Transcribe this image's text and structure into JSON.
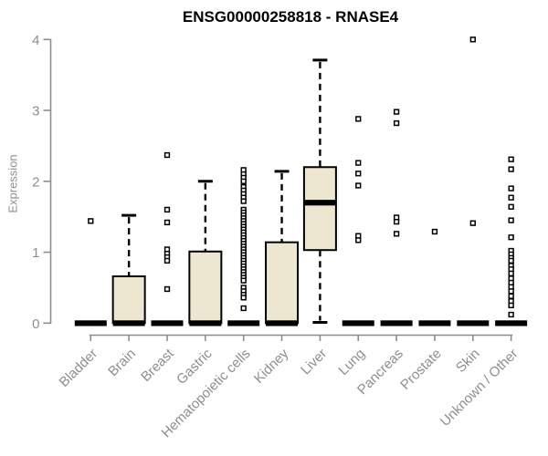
{
  "title": "ENSG00000258818 - RNASE4",
  "y_axis": {
    "label": "Expression",
    "tick_labels": [
      "0",
      "1",
      "2",
      "3",
      "4"
    ]
  },
  "colors": {
    "box_fill": "#EDE7D1",
    "box_stroke": "#000000",
    "median": "#000000",
    "whisker": "#000000",
    "outlier_stroke": "#000000",
    "outlier_fill": "#ffffff",
    "axis": "#8E8E8E",
    "tick_label": "#8E8E8E",
    "title_color": "#000000",
    "background": "#FFFFFF"
  },
  "chart_data": {
    "type": "boxplot",
    "title": "ENSG00000258818 - RNASE4",
    "xlabel": "",
    "ylabel": "Expression",
    "ylim": [
      0,
      4
    ],
    "y_ticks": [
      0,
      1,
      2,
      3,
      4
    ],
    "grid": false,
    "legend": "none",
    "categories": [
      "Bladder",
      "Brain",
      "Breast",
      "Gastric",
      "Hematopoietic cells",
      "Kidney",
      "Liver",
      "Lung",
      "Pancreas",
      "Prostate",
      "Skin",
      "Unknown / Other"
    ],
    "series": [
      {
        "name": "Bladder",
        "min": 0,
        "q1": 0,
        "median": 0,
        "q3": 0,
        "max": 0,
        "outliers": [
          1.44
        ]
      },
      {
        "name": "Brain",
        "min": 0,
        "q1": 0,
        "median": 0,
        "q3": 0.66,
        "max": 1.52,
        "outliers": []
      },
      {
        "name": "Breast",
        "min": 0,
        "q1": 0,
        "median": 0,
        "q3": 0,
        "max": 0,
        "outliers": [
          2.37,
          1.6,
          1.42,
          1.04,
          0.98,
          0.93,
          0.88,
          0.48
        ]
      },
      {
        "name": "Gastric",
        "min": 0,
        "q1": 0,
        "median": 0,
        "q3": 1.01,
        "max": 2.0,
        "outliers": []
      },
      {
        "name": "Hematopoietic cells",
        "min": 0,
        "q1": 0,
        "median": 0,
        "q3": 0,
        "max": 0,
        "outliers": [
          2.16,
          2.1,
          2.05,
          2.0,
          1.92,
          1.87,
          1.82,
          1.77,
          1.72,
          1.6,
          1.56,
          1.52,
          1.48,
          1.44,
          1.4,
          1.36,
          1.32,
          1.28,
          1.24,
          1.2,
          1.16,
          1.12,
          1.08,
          1.04,
          1.0,
          0.96,
          0.92,
          0.88,
          0.84,
          0.8,
          0.76,
          0.72,
          0.68,
          0.64,
          0.6,
          0.5,
          0.45,
          0.4,
          0.36,
          0.21
        ]
      },
      {
        "name": "Kidney",
        "min": 0,
        "q1": 0,
        "median": 0,
        "q3": 1.14,
        "max": 2.14,
        "outliers": []
      },
      {
        "name": "Liver",
        "min": 0.01,
        "q1": 1.03,
        "median": 1.7,
        "q3": 2.2,
        "max": 3.71,
        "outliers": []
      },
      {
        "name": "Lung",
        "min": 0,
        "q1": 0,
        "median": 0,
        "q3": 0,
        "max": 0,
        "outliers": [
          2.88,
          2.26,
          2.11,
          1.94,
          1.23,
          1.17
        ]
      },
      {
        "name": "Pancreas",
        "min": 0,
        "q1": 0,
        "median": 0,
        "q3": 0,
        "max": 0,
        "outliers": [
          2.98,
          2.82,
          1.49,
          1.43,
          1.26
        ]
      },
      {
        "name": "Prostate",
        "min": 0,
        "q1": 0,
        "median": 0,
        "q3": 0,
        "max": 0,
        "outliers": [
          1.29
        ]
      },
      {
        "name": "Skin",
        "min": 0,
        "q1": 0,
        "median": 0,
        "q3": 0,
        "max": 0,
        "outliers": [
          4.0,
          1.41
        ]
      },
      {
        "name": "Unknown / Other",
        "min": 0,
        "q1": 0,
        "median": 0,
        "q3": 0,
        "max": 0,
        "outliers": [
          2.31,
          2.17,
          1.9,
          1.77,
          1.64,
          1.45,
          1.21,
          1.02,
          0.97,
          0.92,
          0.88,
          0.81,
          0.76,
          0.7,
          0.63,
          0.57,
          0.51,
          0.45,
          0.38,
          0.31,
          0.25,
          0.12
        ]
      }
    ]
  }
}
